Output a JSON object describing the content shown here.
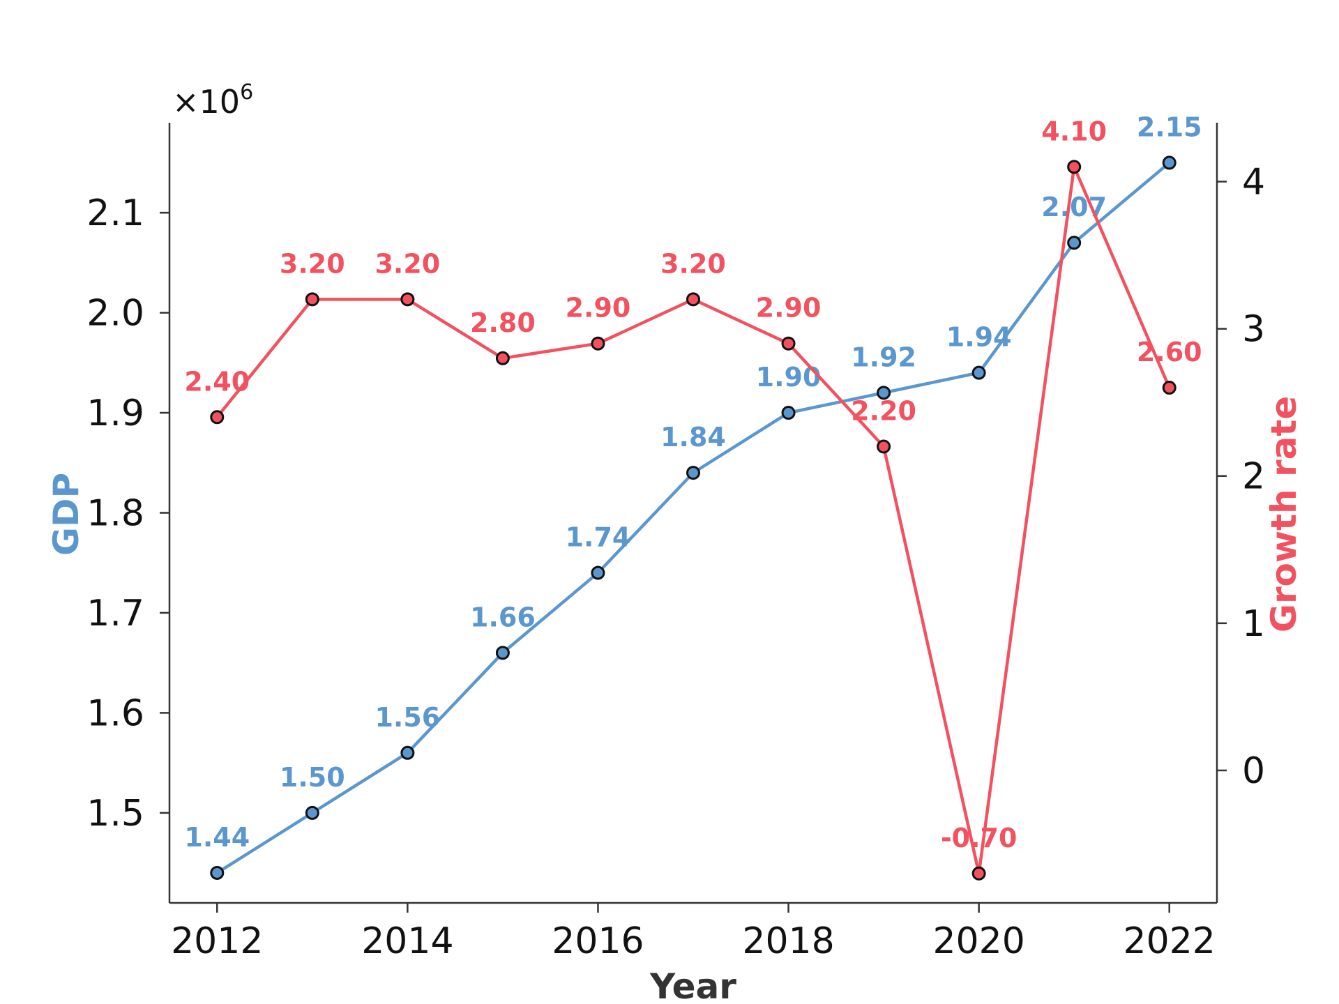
{
  "chart_data": {
    "type": "line",
    "x": [
      2012,
      2013,
      2014,
      2015,
      2016,
      2017,
      2018,
      2019,
      2020,
      2021,
      2022
    ],
    "xlabel": "Year",
    "xticks": [
      "2012",
      "2014",
      "2016",
      "2018",
      "2020",
      "2022"
    ],
    "xlim": [
      2011.5,
      2022.5
    ],
    "y_left": {
      "label": "GDP",
      "multiplier_text": "×10",
      "multiplier_exponent": "6",
      "ticks": [
        "1.5",
        "1.6",
        "1.7",
        "1.8",
        "1.9",
        "2.0",
        "2.1"
      ],
      "ylim": [
        1.41,
        2.19
      ]
    },
    "y_right": {
      "label": "Growth rate",
      "ticks": [
        "0",
        "1",
        "2",
        "3",
        "4"
      ],
      "ylim": [
        -0.9,
        4.4
      ]
    },
    "series": [
      {
        "name": "GDP",
        "axis": "left",
        "color": "#5B97CF",
        "values": [
          1.44,
          1.5,
          1.56,
          1.66,
          1.74,
          1.84,
          1.9,
          1.92,
          1.94,
          2.07,
          2.15
        ],
        "labels": [
          "1.44",
          "1.50",
          "1.56",
          "1.66",
          "1.74",
          "1.84",
          "1.90",
          "1.92",
          "1.94",
          "2.07",
          "2.15"
        ]
      },
      {
        "name": "Growth rate",
        "axis": "right",
        "color": "#F25260",
        "values": [
          2.4,
          3.2,
          3.2,
          2.8,
          2.9,
          3.2,
          2.9,
          2.2,
          -0.7,
          4.1,
          2.6
        ],
        "labels": [
          "2.40",
          "3.20",
          "3.20",
          "2.80",
          "2.90",
          "3.20",
          "2.90",
          "2.20",
          "-0.70",
          "4.10",
          "2.60"
        ]
      }
    ],
    "grid": false,
    "legend": "none"
  }
}
